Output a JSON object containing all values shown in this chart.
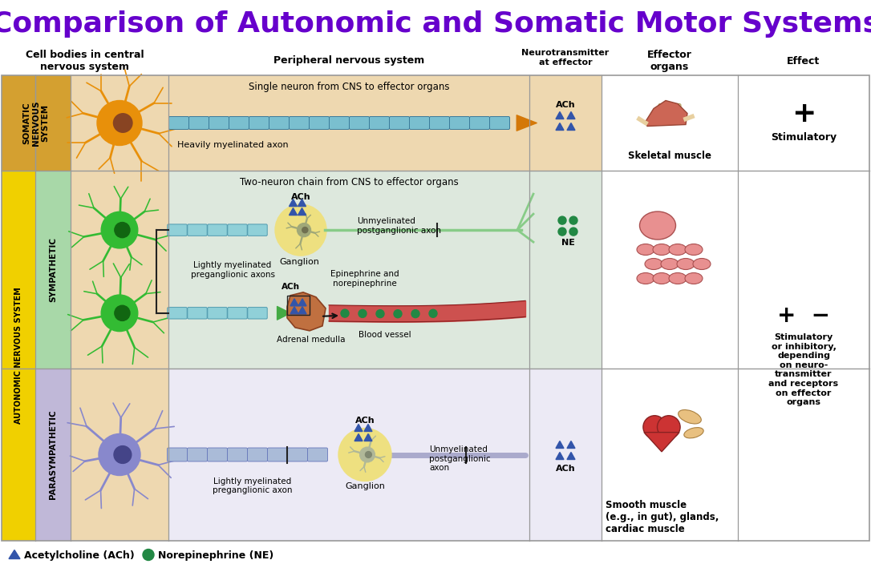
{
  "title": "Comparison of Autonomic and Somatic Motor Systems",
  "title_color": "#6600CC",
  "title_fontsize": 26,
  "bg_color": "#FFFFFF",
  "col_headers": [
    "Cell bodies in central\nnervous system",
    "Peripheral nervous system",
    "Neurotransmitter\nat effector",
    "Effector\norgans",
    "Effect"
  ],
  "row_labels_somatic": "SOMATIC\nNERVOUS\nSYSTEM",
  "row_label_auto": "AUTONOMIC NERVOUS SYSTEM",
  "row_label_symp": "SYMPATHETIC",
  "row_label_para": "PARASYMPATHETIC",
  "somatic_chain_label": "Single neuron from CNS to effector organs",
  "somatic_axon_label": "Heavily myelinated axon",
  "auto_chain_label": "Two-neuron chain from CNS to effector organs",
  "symp_pre_label": "Lightly myelinated\npreganglionic axons",
  "symp_ganglion_label": "Ganglion",
  "symp_post_label": "Unmyelinated\npostganglionic axon",
  "symp_epi_label": "Epinephrine and\nnorepinephrine",
  "symp_adrenal_label": "Adrenal medulla",
  "symp_blood_label": "Blood vessel",
  "para_pre_label": "Lightly myelinated\npreganglionic axon",
  "para_ganglion_label": "Ganglion",
  "para_post_label": "Unmyelinated\npostganglionic\naxon",
  "somatic_effector": "Skeletal muscle",
  "somatic_effect_plus": "+",
  "somatic_effect_label": "Stimulatory",
  "symp_effector": "Smooth muscle\n(e.g., in gut), glands,\ncardiac muscle",
  "auto_effect_plusminus": "+  −",
  "auto_effect_label": "Stimulatory\nor inhibitory,\ndepending\non neuro-\ntransmitter\nand receptors\non effector\norgans",
  "legend_ach": "Acetylcholine (ACh)",
  "legend_ne": "Norepinephrine (NE)",
  "col_label_bg_somatic": "#D4A030",
  "col_label_bg_auto": "#F0D000",
  "col_label_bg_symp": "#A8D8A8",
  "col_label_bg_para": "#C0B8D8",
  "cell_bg_somatic_cns": "#EED8B0",
  "cell_bg_somatic_pns": "#EED8B0",
  "cell_bg_symp_cns": "#EED8B0",
  "cell_bg_symp_pns": "#DDE8DD",
  "cell_bg_para_cns": "#EED8B0",
  "cell_bg_para_pns": "#ECEAF5",
  "neuron_orange": "#E8900A",
  "neuron_orange_nuc": "#884422",
  "neuron_green": "#33BB33",
  "neuron_green_nuc": "#116611",
  "neuron_blue": "#8888CC",
  "neuron_blue_nuc": "#444488",
  "ganglion_bg": "#EEE080",
  "ganglion_neuron": "#A8A060",
  "axon_blue": "#7ABFCF",
  "axon_blue_edge": "#3A7A9A",
  "axon_tip_color": "#D47808",
  "axon_green_pre": "#44AA44",
  "axon_green_post": "#88CC88",
  "axon_blue_para": "#9999CC",
  "adrenal_color": "#C07040",
  "blood_vessel_color": "#CC4040",
  "ne_dot_color": "#228844",
  "ach_tri_color": "#3355AA",
  "grid_color": "#999999"
}
